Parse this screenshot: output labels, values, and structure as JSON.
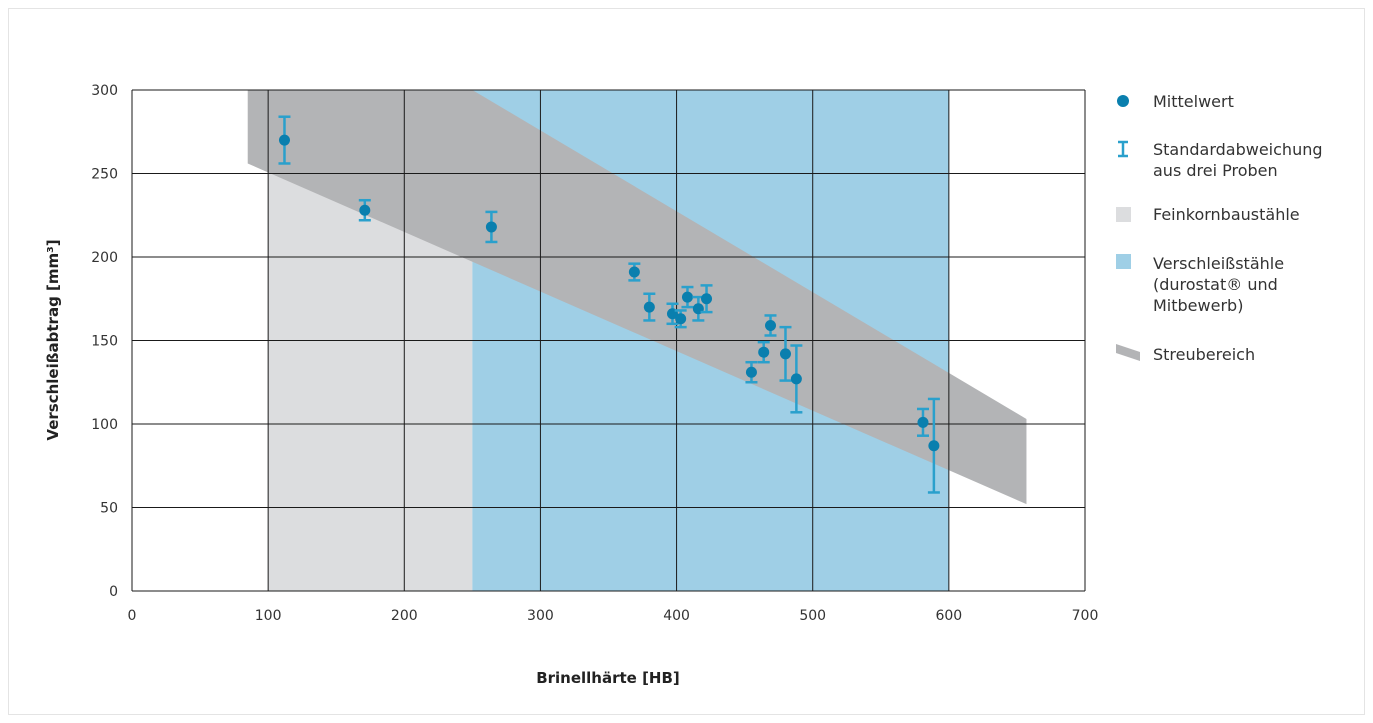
{
  "chart_data": {
    "type": "scatter",
    "xlabel": "Brinellhärte [HB]",
    "ylabel": "Verschleißabtrag [mm³]",
    "xlim": [
      0,
      700
    ],
    "ylim": [
      0,
      300
    ],
    "xticks": [
      0,
      100,
      200,
      300,
      400,
      500,
      600,
      700
    ],
    "yticks": [
      0,
      50,
      100,
      150,
      200,
      250,
      300
    ],
    "grid": true,
    "legend_position": "right",
    "colors": {
      "point": "#0a7fae",
      "errorbar": "#2aa0cc",
      "fine_grain_region": "#dcdddf",
      "wear_steel_region": "#9fcfe6",
      "scatter_band": "#b3b4b6",
      "grid": "#1a1a1a"
    },
    "regions": [
      {
        "name": "Feinkornbaustähle",
        "x": [
          100,
          250
        ],
        "y": [
          0,
          300
        ]
      },
      {
        "name": "Verschleißstähle",
        "x": [
          250,
          600
        ],
        "y": [
          0,
          300
        ]
      }
    ],
    "band": {
      "name": "Streubereich",
      "polygon": [
        [
          85,
          300
        ],
        [
          85,
          256
        ],
        [
          657,
          52
        ],
        [
          657,
          103
        ],
        [
          250,
          300
        ]
      ]
    },
    "points": [
      {
        "x": 112,
        "y": 270,
        "err": 14
      },
      {
        "x": 171,
        "y": 228,
        "err": 6
      },
      {
        "x": 264,
        "y": 218,
        "err": 9
      },
      {
        "x": 369,
        "y": 191,
        "err": 5
      },
      {
        "x": 380,
        "y": 170,
        "err": 8
      },
      {
        "x": 397,
        "y": 166,
        "err": 6
      },
      {
        "x": 403,
        "y": 163,
        "err": 5
      },
      {
        "x": 408,
        "y": 176,
        "err": 6
      },
      {
        "x": 416,
        "y": 169,
        "err": 7
      },
      {
        "x": 422,
        "y": 175,
        "err": 8
      },
      {
        "x": 455,
        "y": 131,
        "err": 6
      },
      {
        "x": 464,
        "y": 143,
        "err": 6
      },
      {
        "x": 469,
        "y": 159,
        "err": 6
      },
      {
        "x": 480,
        "y": 142,
        "err": 16
      },
      {
        "x": 488,
        "y": 127,
        "err": 20
      },
      {
        "x": 581,
        "y": 101,
        "err": 8
      },
      {
        "x": 589,
        "y": 87,
        "err": 28
      }
    ]
  },
  "legend": {
    "mean": "Mittelwert",
    "std_line1": "Standardabweichung",
    "std_line2": "aus drei Proben",
    "fine_grain": "Feinkornbaustähle",
    "wear_line1": "Verschleißstähle",
    "wear_line2": "(durostat® und",
    "wear_line3": "Mitbewerb)",
    "scatter": "Streubereich"
  }
}
